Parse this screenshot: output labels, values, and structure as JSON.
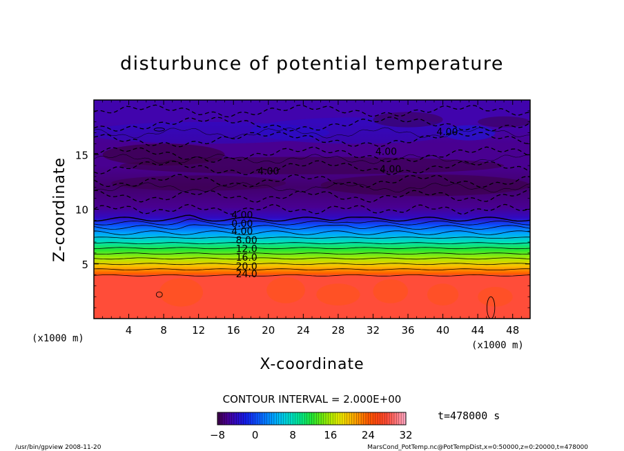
{
  "chart_data": {
    "type": "heatmap",
    "title": "disturbunce of potential temperature",
    "xlabel": "X-coordinate",
    "ylabel": "Z-coordinate",
    "x_unit_left": "(x1000 m)",
    "x_unit_right": "(x1000 m)",
    "xlim": [
      0,
      50
    ],
    "ylim": [
      0,
      20
    ],
    "x_ticks": [
      4,
      8,
      12,
      16,
      20,
      24,
      28,
      32,
      36,
      40,
      44,
      48
    ],
    "y_ticks": [
      5,
      10,
      15
    ],
    "layers": [
      {
        "z": 0,
        "value": 28
      },
      {
        "z": 3.9,
        "value": 28
      },
      {
        "z": 4.1,
        "value": 24
      },
      {
        "z": 4.8,
        "value": 20
      },
      {
        "z": 5.5,
        "value": 16
      },
      {
        "z": 6.3,
        "value": 12
      },
      {
        "z": 7.0,
        "value": 8
      },
      {
        "z": 7.8,
        "value": 4
      },
      {
        "z": 8.6,
        "value": 0
      },
      {
        "z": 9.2,
        "value": -4
      },
      {
        "z": 10.2,
        "value": -6
      },
      {
        "z": 12.0,
        "value": -7
      },
      {
        "z": 14.0,
        "value": -6
      },
      {
        "z": 16.0,
        "value": -6
      },
      {
        "z": 18.0,
        "value": -5
      },
      {
        "z": 20.0,
        "value": -5
      }
    ],
    "contour_labels": [
      {
        "text": "24.0",
        "x": 17.5,
        "z": 4.1
      },
      {
        "text": "20.0",
        "x": 17.5,
        "z": 4.8
      },
      {
        "text": "16.0",
        "x": 17.5,
        "z": 5.6
      },
      {
        "text": "12.0",
        "x": 17.5,
        "z": 6.4
      },
      {
        "text": "8.00",
        "x": 17.5,
        "z": 7.2
      },
      {
        "text": "4.00",
        "x": 17.0,
        "z": 8.0
      },
      {
        "text": "0.00",
        "x": 17.0,
        "z": 8.7
      },
      {
        "text": "4.00",
        "x": 17.0,
        "z": 9.5
      },
      {
        "text": "4.00",
        "x": 20.0,
        "z": 13.5
      },
      {
        "text": "4.00",
        "x": 33.5,
        "z": 15.3
      },
      {
        "text": "4.00",
        "x": 34.0,
        "z": 13.7
      },
      {
        "text": "4.00",
        "x": 40.5,
        "z": 17.1
      }
    ],
    "contour_interval_label": "CONTOUR INTERVAL = 2.000E+00",
    "colorbar": {
      "min": -8,
      "max": 32,
      "ticks": [
        -8,
        0,
        8,
        16,
        24,
        32
      ]
    },
    "time_label": "t=478000 s"
  },
  "footer": {
    "left": "/usr/bin/gpview  2008-11-20",
    "right": "MarsCond_PotTemp.nc@PotTempDist,x=0:50000,z=0:20000,t=478000"
  }
}
